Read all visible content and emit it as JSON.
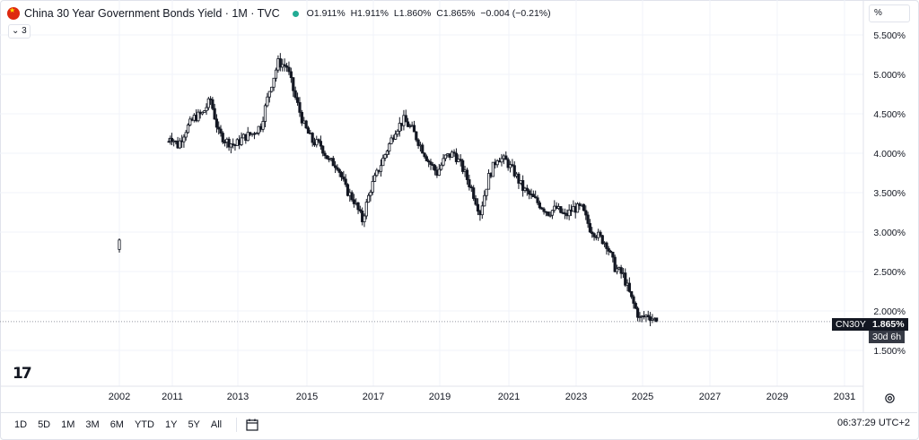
{
  "header": {
    "symbol_title": "China 30 Year Government Bonds Yield · 1M · TVC",
    "ohlc": {
      "o": "O1.911%",
      "h": "H1.911%",
      "l": "L1.860%",
      "c": "C1.865%",
      "chg": "−0.004 (−0.21%)"
    },
    "indicator_count": "3",
    "scale_mode": "%"
  },
  "price_tags": {
    "symbol": "CN30Y",
    "last": "1.865%",
    "countdown": "30d 6h"
  },
  "ranges": [
    "1D",
    "5D",
    "1M",
    "3M",
    "6M",
    "YTD",
    "1Y",
    "5Y",
    "All"
  ],
  "clock": "06:37:29 UTC+2",
  "colors": {
    "bg": "#ffffff",
    "candle": "#131722",
    "grid": "#f0f3fa",
    "price_line": "#9598a1"
  },
  "chart_data": {
    "type": "candlestick",
    "y_unit": "%",
    "ylim": [
      1.3,
      5.7
    ],
    "y_ticks": [
      "5.500%",
      "5.000%",
      "4.500%",
      "4.000%",
      "3.500%",
      "3.000%",
      "2.500%",
      "2.000%",
      "1.500%"
    ],
    "x_ticks": [
      "2002",
      "2011",
      "2013",
      "2015",
      "2017",
      "2019",
      "2021",
      "2023",
      "2025",
      "2027",
      "2029",
      "2031"
    ],
    "last_price": 1.865,
    "series": [
      {
        "name": "CN30Y",
        "points": [
          [
            "2002",
            2.8
          ],
          [
            "2010-06",
            4.15
          ],
          [
            "2010-09",
            4.22
          ],
          [
            "2010-12",
            4.2
          ],
          [
            "2011-03",
            4.1
          ],
          [
            "2011-06",
            4.3
          ],
          [
            "2011-09",
            4.45
          ],
          [
            "2011-12",
            4.5
          ],
          [
            "2012-03",
            4.68
          ],
          [
            "2012-06",
            4.25
          ],
          [
            "2012-09",
            4.15
          ],
          [
            "2012-12",
            4.1
          ],
          [
            "2013-03",
            4.2
          ],
          [
            "2013-06",
            4.25
          ],
          [
            "2013-09",
            4.35
          ],
          [
            "2013-12",
            4.8
          ],
          [
            "2014-03",
            5.15
          ],
          [
            "2014-06",
            5.1
          ],
          [
            "2014-09",
            4.7
          ],
          [
            "2014-12",
            4.35
          ],
          [
            "2015-03",
            4.15
          ],
          [
            "2015-06",
            4.1
          ],
          [
            "2015-09",
            3.9
          ],
          [
            "2015-12",
            3.85
          ],
          [
            "2016-03",
            3.55
          ],
          [
            "2016-06",
            3.4
          ],
          [
            "2016-09",
            3.15
          ],
          [
            "2016-12",
            3.55
          ],
          [
            "2017-03",
            3.8
          ],
          [
            "2017-06",
            4.05
          ],
          [
            "2017-09",
            4.3
          ],
          [
            "2017-12",
            4.42
          ],
          [
            "2018-03",
            4.3
          ],
          [
            "2018-06",
            4.1
          ],
          [
            "2018-09",
            3.9
          ],
          [
            "2018-12",
            3.75
          ],
          [
            "2019-03",
            3.95
          ],
          [
            "2019-06",
            4.0
          ],
          [
            "2019-09",
            3.8
          ],
          [
            "2019-12",
            3.55
          ],
          [
            "2020-03",
            3.25
          ],
          [
            "2020-06",
            3.7
          ],
          [
            "2020-09",
            3.95
          ],
          [
            "2020-12",
            3.9
          ],
          [
            "2021-03",
            3.75
          ],
          [
            "2021-06",
            3.55
          ],
          [
            "2021-09",
            3.45
          ],
          [
            "2021-12",
            3.35
          ],
          [
            "2022-03",
            3.25
          ],
          [
            "2022-06",
            3.3
          ],
          [
            "2022-09",
            3.2
          ],
          [
            "2022-12",
            3.3
          ],
          [
            "2023-03",
            3.3
          ],
          [
            "2023-06",
            3.05
          ],
          [
            "2023-09",
            2.95
          ],
          [
            "2023-12",
            2.85
          ],
          [
            "2024-03",
            2.55
          ],
          [
            "2024-06",
            2.45
          ],
          [
            "2024-09",
            2.15
          ],
          [
            "2024-12",
            1.9
          ],
          [
            "2025-03",
            1.95
          ],
          [
            "2025-06",
            1.865
          ]
        ]
      }
    ]
  }
}
